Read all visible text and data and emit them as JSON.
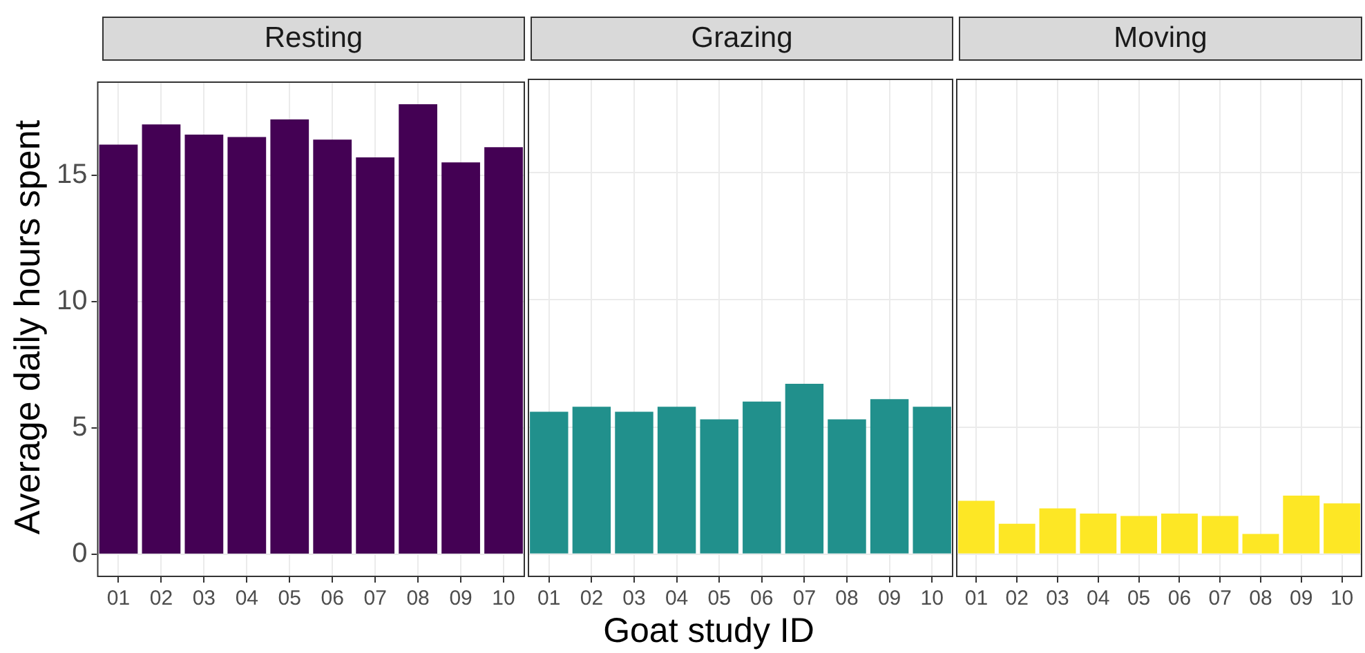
{
  "chart_data": [
    {
      "type": "bar",
      "title": "Resting",
      "ylabel": "Average daily hours spent",
      "categories": [
        "01",
        "02",
        "03",
        "04",
        "05",
        "06",
        "07",
        "08",
        "09",
        "10"
      ],
      "values": [
        16.2,
        17.0,
        16.6,
        16.5,
        17.2,
        16.4,
        15.7,
        17.8,
        15.5,
        16.1
      ],
      "color": "#440154",
      "ylim": [
        -0.9,
        18.7
      ],
      "yticks": [
        0,
        5,
        10,
        15
      ],
      "grid": true
    },
    {
      "type": "bar",
      "title": "Grazing",
      "xlabel": "Goat study ID",
      "categories": [
        "01",
        "02",
        "03",
        "04",
        "05",
        "06",
        "07",
        "08",
        "09",
        "10"
      ],
      "values": [
        5.6,
        5.8,
        5.6,
        5.8,
        5.3,
        6.0,
        6.7,
        5.3,
        6.1,
        5.8
      ],
      "color": "#21908c",
      "ylim": [
        -0.9,
        18.7
      ],
      "yticks": [
        0,
        5,
        10,
        15
      ],
      "grid": true,
      "tick_labels": "x"
    },
    {
      "type": "bar",
      "title": "Moving",
      "categories": [
        "01",
        "02",
        "03",
        "04",
        "05",
        "06",
        "07",
        "08",
        "09",
        "10"
      ],
      "values": [
        2.1,
        1.2,
        1.8,
        1.6,
        1.5,
        1.6,
        1.5,
        0.8,
        2.3,
        2.0
      ],
      "color": "#fde725",
      "ylim": [
        -0.9,
        18.7
      ],
      "yticks": [
        0,
        5,
        10,
        15
      ],
      "grid": true,
      "tick_labels": "x"
    }
  ]
}
